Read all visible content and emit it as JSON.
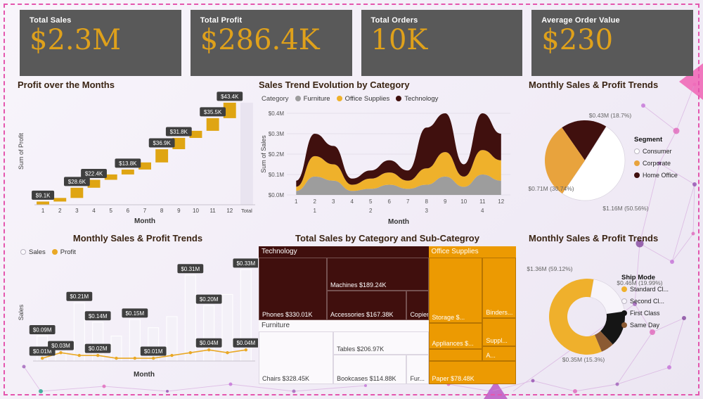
{
  "kpis": [
    {
      "label": "Total Sales",
      "value": "$2.3M"
    },
    {
      "label": "Total Profit",
      "value": "$286.4K"
    },
    {
      "label": "Total Orders",
      "value": "10K"
    },
    {
      "label": "Average Order Value",
      "value": "$230"
    }
  ],
  "colors": {
    "accent_gold": "#DFA11B",
    "dark_maroon": "#40100E",
    "card_bg": "#595959",
    "chip_bg": "#3F3F3F",
    "dashed_border": "#E456AE"
  },
  "chart_data": [
    {
      "type": "waterfall",
      "title": "Profit over the Months",
      "xlabel": "Month",
      "ylabel": "Sum of Profit",
      "categories": [
        "1",
        "2",
        "3",
        "4",
        "5",
        "6",
        "7",
        "8",
        "9",
        "10",
        "11",
        "12",
        "Total"
      ],
      "increments_k": [
        9.1,
        10.0,
        28.6,
        22.4,
        15.0,
        13.8,
        20.0,
        36.9,
        31.8,
        19.9,
        35.5,
        43.4
      ],
      "total_k": 286.4,
      "ymax_k": 300,
      "bar_color": "#DFA513",
      "total_color": "#E9E4F0",
      "labels": [
        {
          "i": 0,
          "text": "$9.1K"
        },
        {
          "i": 2,
          "text": "$28.6K"
        },
        {
          "i": 3,
          "text": "$22.4K"
        },
        {
          "i": 5,
          "text": "$13.8K"
        },
        {
          "i": 7,
          "text": "$36.9K"
        },
        {
          "i": 8,
          "text": "$31.8K"
        },
        {
          "i": 10,
          "text": "$35.5K"
        },
        {
          "i": 11,
          "text": "$43.4K"
        }
      ]
    },
    {
      "type": "area",
      "title": "Sales Trend Evolution by Category",
      "legend_title": "Category",
      "xlabel": "Month",
      "ylabel": "Sum of Sales",
      "x": [
        "1",
        "2",
        "3",
        "4",
        "5",
        "6",
        "7",
        "8",
        "9",
        "10",
        "11",
        "12"
      ],
      "quarter_ticks": [
        "1",
        "2",
        "3",
        "4"
      ],
      "yticks": [
        "$0.0M",
        "$0.1M",
        "$0.2M",
        "$0.3M",
        "$0.4M"
      ],
      "ymax_m": 0.4,
      "series": [
        {
          "name": "Furniture",
          "color": "#9D9D9D",
          "values_m": [
            0.02,
            0.09,
            0.07,
            0.02,
            0.03,
            0.05,
            0.03,
            0.05,
            0.09,
            0.04,
            0.1,
            0.07
          ]
        },
        {
          "name": "Office Supplies",
          "color": "#EFB12B",
          "values_m": [
            0.02,
            0.1,
            0.08,
            0.03,
            0.05,
            0.06,
            0.04,
            0.08,
            0.12,
            0.05,
            0.12,
            0.1
          ]
        },
        {
          "name": "Technology",
          "color": "#40100E",
          "values_m": [
            0.03,
            0.11,
            0.09,
            0.03,
            0.04,
            0.06,
            0.05,
            0.2,
            0.19,
            0.06,
            0.18,
            0.13
          ]
        }
      ]
    },
    {
      "type": "pie",
      "title": "Monthly Sales & Profit Trends",
      "legend_title": "Segment",
      "start_angle": -35,
      "slices": [
        {
          "name": "Home Office",
          "color": "#40100E",
          "pct": 18.7,
          "label": "$0.43M (18.7%)",
          "label_pos": [
            130,
            36
          ]
        },
        {
          "name": "Consumer",
          "color": "#FFFFFF",
          "outline": true,
          "pct": 50.56,
          "label": "$1.16M (50.56%)",
          "label_pos": [
            152,
            168
          ]
        },
        {
          "name": "Corporate",
          "color": "#E8A33D",
          "pct": 30.74,
          "label": "$0.71M (30.74%)",
          "label_pos": [
            46,
            140
          ]
        }
      ],
      "legend": [
        {
          "name": "Consumer",
          "color": "#FFFFFF",
          "outline": true
        },
        {
          "name": "Corporate",
          "color": "#E8A33D"
        },
        {
          "name": "Home Office",
          "color": "#40100E"
        }
      ]
    },
    {
      "type": "bar+line",
      "title": "Monthly Sales & Profit Trends",
      "xlabel": "Month",
      "ylabel": "Sales",
      "ymax_m": 0.35,
      "bar_color": "#F4F1F8",
      "line_color": "#E9A825",
      "legend": [
        {
          "name": "Sales",
          "color": "#FBF9FE",
          "outline": true
        },
        {
          "name": "Profit",
          "color": "#E9A825"
        }
      ],
      "sales_m": [
        0.09,
        0.06,
        0.21,
        0.14,
        0.09,
        0.15,
        0.12,
        0.16,
        0.31,
        0.2,
        0.24,
        0.33
      ],
      "profit_m": [
        0.01,
        0.03,
        0.02,
        0.02,
        0.01,
        0.01,
        0.01,
        0.02,
        0.03,
        0.04,
        0.03,
        0.04
      ],
      "sales_labels": [
        {
          "i": 0,
          "text": "$0.09M"
        },
        {
          "i": 2,
          "text": "$0.21M"
        },
        {
          "i": 3,
          "text": "$0.14M"
        },
        {
          "i": 5,
          "text": "$0.15M"
        },
        {
          "i": 8,
          "text": "$0.31M"
        },
        {
          "i": 9,
          "text": "$0.20M"
        },
        {
          "i": 11,
          "text": "$0.33M"
        }
      ],
      "profit_labels": [
        {
          "i": 0,
          "text": "$0.01M"
        },
        {
          "i": 1,
          "text": "$0.03M"
        },
        {
          "i": 3,
          "text": "$0.02M"
        },
        {
          "i": 6,
          "text": "$0.01M"
        },
        {
          "i": 9,
          "text": "$0.04M"
        },
        {
          "i": 11,
          "text": "$0.04M"
        }
      ]
    },
    {
      "type": "treemap",
      "title": "Total Sales by Category and Sub-Categroy",
      "groups": [
        {
          "name": "Technology",
          "color": "#400F0D",
          "text_color": "#FFFFFF",
          "border_color": "rgba(255,255,255,0.28)",
          "rect_pct": [
            0,
            0,
            66,
            53.6
          ],
          "cells": [
            {
              "name": "Phones",
              "label": "Phones $330.01K",
              "rect_pct": [
                0,
                8,
                26.5,
                45.6
              ]
            },
            {
              "name": "Machines",
              "label": "Machines $189.24K",
              "rect_pct": [
                26.5,
                8,
                39.5,
                24
              ]
            },
            {
              "name": "Accessories",
              "label": "Accessories $167.38K",
              "rect_pct": [
                26.5,
                32,
                31,
                21.6
              ]
            },
            {
              "name": "Copiers",
              "label": "Copier...",
              "rect_pct": [
                57.5,
                32,
                8.5,
                21.6
              ]
            }
          ]
        },
        {
          "name": "Furniture",
          "color": "#FBF9FC",
          "text_color": "#3B3B3B",
          "border_color": "#DDD7E2",
          "rect_pct": [
            0,
            53.6,
            66,
            46.4
          ],
          "cells": [
            {
              "name": "Chairs",
              "label": "Chairs $328.45K",
              "rect_pct": [
                0,
                61.6,
                29,
                38.4
              ]
            },
            {
              "name": "Tables",
              "label": "Tables $206.97K",
              "rect_pct": [
                29,
                61.6,
                37,
                17
              ]
            },
            {
              "name": "Bookcases",
              "label": "Bookcases $114.88K",
              "rect_pct": [
                29,
                78.6,
                28.5,
                21.4
              ]
            },
            {
              "name": "Furnishings",
              "label": "Fur...",
              "rect_pct": [
                57.5,
                78.6,
                8.5,
                21.4
              ]
            }
          ]
        },
        {
          "name": "Office Supplies",
          "color": "#EC9A02",
          "text_color": "#FFFFFF",
          "border_color": "rgba(120,70,0,0.45)",
          "rect_pct": [
            66,
            0,
            34,
            100
          ],
          "cells": [
            {
              "name": "Storage",
              "label": "Storage $...",
              "rect_pct": [
                66,
                8,
                21,
                47.5
              ]
            },
            {
              "name": "Binders",
              "label": "Binders...",
              "rect_pct": [
                87,
                8,
                13,
                44
              ]
            },
            {
              "name": "Appliances",
              "label": "Appliances $...",
              "rect_pct": [
                66,
                55.5,
                21,
                19
              ]
            },
            {
              "name": "Supplies",
              "label": "Suppl...",
              "rect_pct": [
                87,
                52,
                13,
                20.5
              ]
            },
            {
              "name": "Art",
              "label": "A...",
              "rect_pct": [
                87,
                72.5,
                13,
                10.5
              ]
            },
            {
              "name": "unlabeled",
              "label": "",
              "rect_pct": [
                66,
                74.5,
                21,
                8.5
              ]
            },
            {
              "name": "Paper",
              "label": "Paper $78.48K",
              "rect_pct": [
                66,
                83,
                34,
                17
              ]
            }
          ]
        }
      ]
    },
    {
      "type": "donut",
      "title": "Monthly Sales & Profit Trends",
      "legend_title": "Ship Mode",
      "start_angle": 10,
      "slices": [
        {
          "name": "Second Cl...",
          "color": "#F7F4FA",
          "outline": true,
          "pct": 19.99,
          "label": "$0.46M (19.99%)",
          "label_pos": [
            172,
            54
          ]
        },
        {
          "name": "First Class",
          "color": "#151515",
          "pct": 15.3,
          "label": "$0.35M (15.3%)",
          "label_pos": [
            92,
            163
          ]
        },
        {
          "name": "Same Day",
          "color": "#8B5A33",
          "pct": 5.59,
          "label": "",
          "label_pos": [
            0,
            0
          ]
        },
        {
          "name": "Standard Cl...",
          "color": "#EFB02C",
          "pct": 59.12,
          "label": "$1.36M (59.12%)",
          "label_pos": [
            44,
            34
          ]
        }
      ],
      "legend": [
        {
          "name": "Standard Cl...",
          "color": "#EFB02C"
        },
        {
          "name": "Second Cl...",
          "color": "#F7F4FA",
          "outline": true
        },
        {
          "name": "First Class",
          "color": "#151515"
        },
        {
          "name": "Same Day",
          "color": "#8B5A33"
        }
      ]
    }
  ]
}
